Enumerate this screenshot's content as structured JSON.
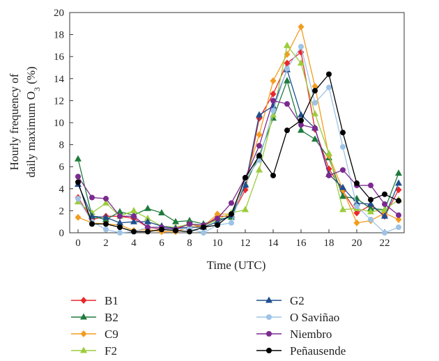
{
  "chart_data": {
    "type": "line",
    "xlabel": "Time (UTC)",
    "ylabel_lines": [
      "Hourly frequency of",
      "daily maximum O",
      "3",
      " (%)"
    ],
    "xlim": [
      0,
      23
    ],
    "ylim": [
      0,
      20
    ],
    "x_ticks": [
      0,
      2,
      4,
      6,
      8,
      10,
      12,
      14,
      16,
      18,
      20,
      22
    ],
    "y_ticks": [
      0,
      2,
      4,
      6,
      8,
      10,
      12,
      14,
      16,
      18,
      20
    ],
    "grid": false,
    "legend_placement": "bottom",
    "x": [
      0,
      1,
      2,
      3,
      4,
      5,
      6,
      7,
      8,
      9,
      10,
      11,
      12,
      13,
      14,
      15,
      16,
      17,
      18,
      19,
      20,
      21,
      22,
      23
    ],
    "series": [
      {
        "name": "B1",
        "color": "#e8272b",
        "marker": "diamond",
        "values": [
          3.2,
          1.2,
          1.5,
          1.5,
          1.3,
          0.5,
          0.3,
          0.4,
          0.8,
          0.5,
          1.5,
          1.5,
          3.9,
          10.4,
          12.6,
          15.4,
          16.4,
          9.4,
          5.8,
          3.8,
          1.8,
          2.5,
          1.5,
          3.9
        ]
      },
      {
        "name": "B2",
        "color": "#1e7b3c",
        "marker": "triangle",
        "values": [
          6.7,
          1.5,
          1.2,
          1.9,
          1.6,
          2.2,
          1.8,
          1.0,
          1.1,
          0.8,
          1.2,
          1.4,
          4.4,
          7.0,
          10.4,
          13.8,
          9.3,
          8.5,
          6.8,
          3.3,
          3.1,
          2.2,
          2.1,
          5.4
        ]
      },
      {
        "name": "C9",
        "color": "#f39c1e",
        "marker": "diamond",
        "values": [
          1.4,
          0.9,
          0.8,
          0.7,
          0.2,
          0.3,
          0.1,
          0.1,
          0.5,
          0.6,
          1.7,
          1.7,
          4.8,
          8.9,
          13.8,
          16.2,
          18.7,
          13.3,
          7.0,
          3.9,
          0.9,
          1.1,
          1.8,
          1.2
        ]
      },
      {
        "name": "F2",
        "color": "#9ccc3c",
        "marker": "triangle",
        "values": [
          2.8,
          1.8,
          2.7,
          1.5,
          2.0,
          1.3,
          0.6,
          0.5,
          0.8,
          0.6,
          1.2,
          1.8,
          2.1,
          5.7,
          10.7,
          17.0,
          15.4,
          10.8,
          7.2,
          2.1,
          2.2,
          1.9,
          2.1,
          3.0
        ]
      },
      {
        "name": "G2",
        "color": "#1f4e8c",
        "marker": "triangle",
        "values": [
          4.4,
          1.5,
          1.4,
          0.9,
          1.0,
          1.0,
          0.6,
          0.4,
          0.5,
          0.5,
          1.0,
          1.6,
          4.3,
          10.7,
          11.5,
          14.8,
          10.7,
          9.5,
          5.3,
          4.1,
          2.7,
          2.6,
          1.5,
          4.5
        ]
      },
      {
        "name": "O Saviñao",
        "color": "#9dc3e6",
        "marker": "circle",
        "values": [
          3.1,
          1.0,
          0.3,
          0.0,
          0.1,
          0.5,
          0.4,
          0.3,
          0.4,
          0.0,
          0.7,
          0.9,
          4.9,
          6.6,
          11.1,
          14.9,
          16.9,
          11.8,
          13.2,
          7.8,
          2.4,
          1.2,
          0.0,
          0.5
        ]
      },
      {
        "name": "Niembro",
        "color": "#7b2a8f",
        "marker": "circle",
        "values": [
          5.1,
          3.2,
          3.1,
          1.5,
          1.5,
          0.5,
          0.5,
          0.3,
          0.8,
          0.7,
          1.3,
          2.7,
          5.0,
          7.9,
          12.0,
          11.7,
          9.8,
          9.5,
          5.2,
          5.7,
          4.3,
          4.3,
          2.6,
          1.6
        ]
      },
      {
        "name": "Peñausende",
        "color": "#000000",
        "marker": "circle",
        "values": [
          4.6,
          0.8,
          0.8,
          0.5,
          0.1,
          0.1,
          0.3,
          0.2,
          0.1,
          0.5,
          0.7,
          1.7,
          5.0,
          7.0,
          5.2,
          9.3,
          10.2,
          12.9,
          14.4,
          9.1,
          4.5,
          3.0,
          3.5,
          2.9
        ]
      }
    ]
  }
}
